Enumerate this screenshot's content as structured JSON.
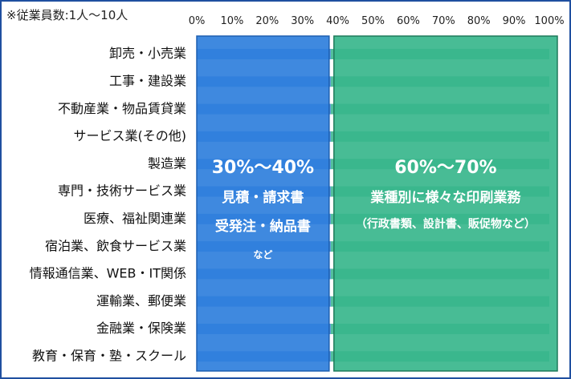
{
  "note": "※従業員数:1人～10人",
  "chart_data": {
    "type": "bar",
    "stacked": true,
    "orientation": "horizontal",
    "x_ticks": [
      "0%",
      "10%",
      "20%",
      "30%",
      "40%",
      "50%",
      "60%",
      "70%",
      "80%",
      "90%",
      "100%"
    ],
    "xlim": [
      0,
      100
    ],
    "categories": [
      "卸売・小売業",
      "工事・建設業",
      "不動産業・物品賃貸業",
      "サービス業(その他)",
      "製造業",
      "専門・技術サービス業",
      "医療、福祉関連業",
      "宿泊業、飲食サービス業",
      "情報通信業、WEB・IT関係",
      "運輸業、郵便業",
      "金融業・保険業",
      "教育・保育・塾・スクール"
    ],
    "series": [
      {
        "values": [
          38,
          38,
          38,
          38,
          38,
          38,
          38,
          38,
          38,
          38,
          38,
          38
        ],
        "color": "#2f7fdc"
      },
      {
        "values": [
          62,
          62,
          62,
          62,
          62,
          62,
          62,
          62,
          62,
          62,
          62,
          62
        ],
        "color": "#35b48a"
      }
    ],
    "annotations": [
      {
        "range_pct": [
          0,
          38
        ],
        "heading": "30%～40%",
        "lines": [
          "見積・請求書",
          "受発注・納品書"
        ],
        "small": "など",
        "fill": "#2f7fdc",
        "border": "#1d5fb0"
      },
      {
        "range_pct": [
          38,
          100
        ],
        "heading": "60%～70%",
        "lines": [
          "業種別に様々な印刷業務"
        ],
        "small": "（行政書類、設計書、販促物など）",
        "fill": "#38b68c",
        "border": "#1e7a5a"
      }
    ]
  }
}
